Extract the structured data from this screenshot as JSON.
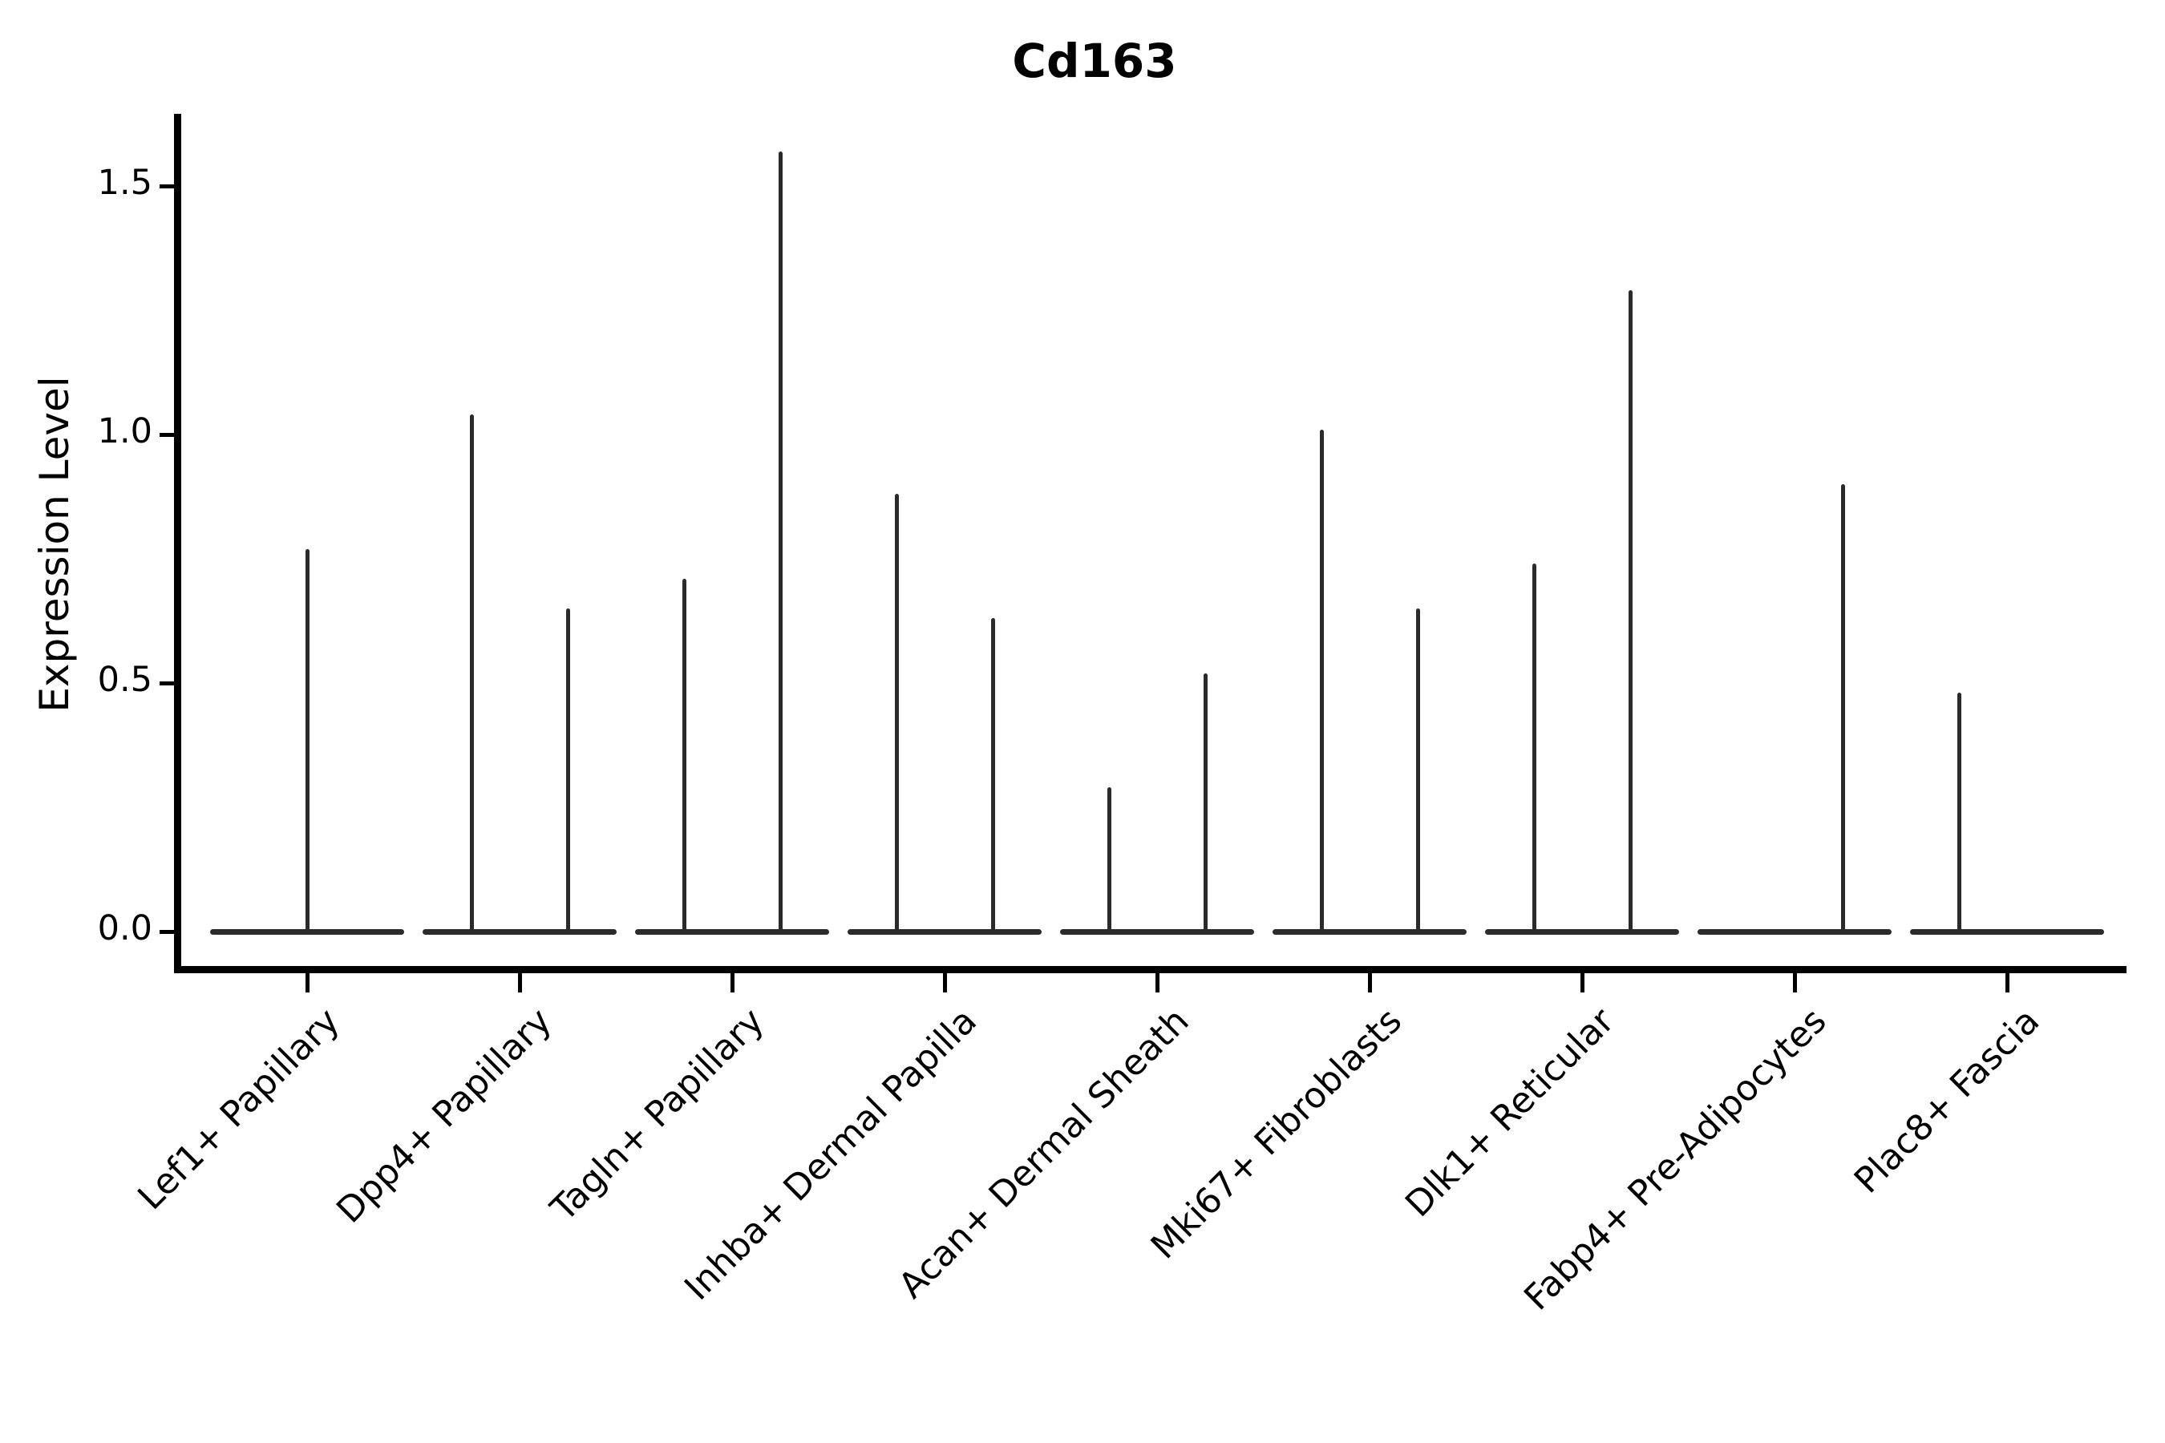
{
  "chart_data": {
    "type": "violin",
    "title": "Cd163",
    "xlabel": "",
    "ylabel": "Expression Level",
    "yticks": [
      {
        "value": 0.0,
        "label": "0.0"
      },
      {
        "value": 0.5,
        "label": "0.5"
      },
      {
        "value": 1.0,
        "label": "1.0"
      },
      {
        "value": 1.5,
        "label": "1.5"
      }
    ],
    "ylim": [
      -0.08,
      1.65
    ],
    "grid": false,
    "legend": "none",
    "violin_color": "#2b2b2b",
    "axis_color": "#000000",
    "categories": [
      {
        "label": "Lef1+ Papillary",
        "violins": [
          {
            "span": "full",
            "max": 0.77
          }
        ]
      },
      {
        "label": "Dpp4+ Papillary",
        "violins": [
          {
            "span": "left",
            "max": 1.04
          },
          {
            "span": "right",
            "max": 0.65
          }
        ]
      },
      {
        "label": "Tagln+ Papillary",
        "violins": [
          {
            "span": "left",
            "max": 0.71
          },
          {
            "span": "right",
            "max": 1.57
          }
        ]
      },
      {
        "label": "Inhba+ Dermal Papilla",
        "violins": [
          {
            "span": "left",
            "max": 0.88
          },
          {
            "span": "right",
            "max": 0.63
          }
        ]
      },
      {
        "label": "Acan+ Dermal Sheath",
        "violins": [
          {
            "span": "left",
            "max": 0.29
          },
          {
            "span": "right",
            "max": 0.52
          }
        ]
      },
      {
        "label": "Mki67+ Fibroblasts",
        "violins": [
          {
            "span": "left",
            "max": 1.01
          },
          {
            "span": "right",
            "max": 0.65
          }
        ]
      },
      {
        "label": "Dlk1+ Reticular",
        "violins": [
          {
            "span": "left",
            "max": 0.74
          },
          {
            "span": "right",
            "max": 1.29
          }
        ]
      },
      {
        "label": "Fabp4+ Pre-Adipocytes",
        "violins": [
          {
            "span": "left",
            "max": 0.0
          },
          {
            "span": "right",
            "max": 0.9
          }
        ]
      },
      {
        "label": "Plac8+ Fascia",
        "violins": [
          {
            "span": "left",
            "max": 0.48
          },
          {
            "span": "right",
            "max": 0.0
          }
        ]
      }
    ]
  }
}
